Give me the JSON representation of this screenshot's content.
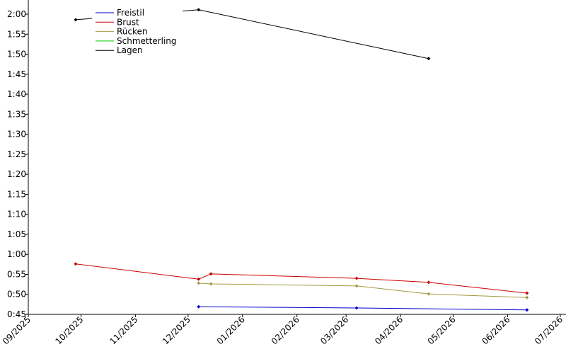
{
  "chart_data": {
    "type": "line",
    "xlim": [
      "2025-09-01",
      "2026-07-01"
    ],
    "xticks": [
      {
        "value": "2025-09-01",
        "label": "09/2025"
      },
      {
        "value": "2025-10-01",
        "label": "10/2025"
      },
      {
        "value": "2025-11-01",
        "label": "11/2025"
      },
      {
        "value": "2025-12-01",
        "label": "12/2025"
      },
      {
        "value": "2026-01-01",
        "label": "01/2026"
      },
      {
        "value": "2026-02-01",
        "label": "02/2026"
      },
      {
        "value": "2026-03-01",
        "label": "03/2026"
      },
      {
        "value": "2026-04-01",
        "label": "04/2026"
      },
      {
        "value": "2026-05-01",
        "label": "05/2026"
      },
      {
        "value": "2026-06-01",
        "label": "06/2026"
      },
      {
        "value": "2026-07-01",
        "label": "07/2026"
      }
    ],
    "ylim": [
      45,
      120
    ],
    "yticks": [
      {
        "value": 45,
        "label": "0:45"
      },
      {
        "value": 50,
        "label": "0:50"
      },
      {
        "value": 55,
        "label": "0:55"
      },
      {
        "value": 60,
        "label": "1:00"
      },
      {
        "value": 65,
        "label": "1:05"
      },
      {
        "value": 70,
        "label": "1:10"
      },
      {
        "value": 75,
        "label": "1:15"
      },
      {
        "value": 80,
        "label": "1:20"
      },
      {
        "value": 85,
        "label": "1:25"
      },
      {
        "value": 90,
        "label": "1:30"
      },
      {
        "value": 95,
        "label": "1:35"
      },
      {
        "value": 100,
        "label": "1:40"
      },
      {
        "value": 105,
        "label": "1:45"
      },
      {
        "value": 110,
        "label": "1:50"
      },
      {
        "value": 115,
        "label": "1:55"
      },
      {
        "value": 120,
        "label": "2:00"
      }
    ],
    "legend": "upper left",
    "series": [
      {
        "name": "Freistil",
        "color": "#0000cc",
        "x": [
          "2025-12-07",
          "2026-03-07",
          "2026-06-12"
        ],
        "values": [
          46.9,
          46.6,
          46.1
        ]
      },
      {
        "name": "Brust",
        "color": "#cc0000",
        "x": [
          "2025-09-28",
          "2025-12-07",
          "2025-12-14",
          "2026-03-07",
          "2026-04-17",
          "2026-06-12"
        ],
        "values": [
          57.6,
          53.8,
          55.1,
          54.0,
          53.0,
          50.3
        ]
      },
      {
        "name": "Rücken",
        "color": "#a09a40",
        "x": [
          "2025-12-07",
          "2025-12-14",
          "2026-03-07",
          "2026-04-17",
          "2026-06-12"
        ],
        "values": [
          52.8,
          52.6,
          52.1,
          50.1,
          49.2
        ]
      },
      {
        "name": "Schmetterling",
        "color": "#00cc00",
        "x": [],
        "values": []
      },
      {
        "name": "Lagen",
        "color": "#000000",
        "x": [
          "2025-09-28",
          "2025-12-07",
          "2026-04-17"
        ],
        "values": [
          118.6,
          121.1,
          108.9
        ]
      }
    ]
  }
}
